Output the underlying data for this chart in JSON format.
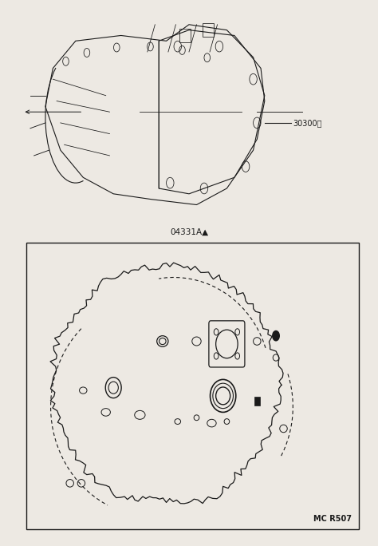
{
  "bg_color": "#ede9e3",
  "line_color": "#1a1a1a",
  "label_30300": "30300。",
  "label_04331A": "04331A▲",
  "label_MCR507": "MC R507"
}
